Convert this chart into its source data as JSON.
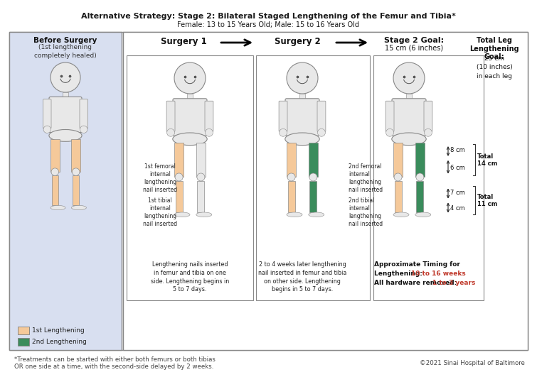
{
  "title_line1": "Alternative Strategy: Stage 2: Bilateral Staged Lengthening of the Femur and Tibia*",
  "title_line2": "Female: 13 to 15 Years Old; Male: 15 to 16 Years Old",
  "bg_color": "#ffffff",
  "panel_bg_left": "#d8dff0",
  "before_surgery_title": "Before Surgery",
  "before_surgery_sub": "(1st lengthening\ncompletely healed)",
  "surgery1_label": "Surgery 1",
  "surgery2_label": "Surgery 2",
  "stage2_goal_title": "Stage 2 Goal:",
  "stage2_goal_val": "15 cm (6 inches)",
  "total_leg_title": "Total Leg\nLengthening\nGoal:",
  "total_leg_val": "25 cm\n(10 inches)\nin each leg",
  "surg1_femoral_label": "1st femoral\ninternal\nlengthening\nnail inserted",
  "surg1_tibial_label": "1st tibial\ninternal\nlengthening\nnail inserted",
  "surg2_femoral_label": "2nd femoral\ninternal\nlengthening\nnail inserted",
  "surg2_tibial_label": "2nd tibial\ninternal\nlengthening\nnail inserted",
  "surg1_caption": "Lengthening nails inserted\nin femur and tibia on one\nside. Lengthening begins in\n5 to 7 days.",
  "surg2_caption": "2 to 4 weeks later lengthening\nnail inserted in femur and tibia\non other side. Lengthening\nbegins in 5 to 7 days.",
  "timing_title": "Approximate Timing for",
  "timing_line1_prefix": "Lengthening: ",
  "timing_line1_val": "10 to 16 weeks",
  "timing_line2_prefix": "All hardware removed: ",
  "timing_line2_val": "1 to 3 years",
  "femur_8cm": "↑4 8 cm",
  "femur_6cm": "6 cm",
  "femur_total": "Total\n14 cm",
  "tibia_7cm": "↑7 cm",
  "tibia_4cm": "4 cm",
  "tibia_total": "Total\n11 cm",
  "legend_1st": "1st Lengthening",
  "legend_2nd": "2nd Lengthening",
  "color_1st": "#f5c99a",
  "color_2nd": "#3a8c5c",
  "timing_color": "#c0392b",
  "footnote_line1": "*Treatments can be started with either both femurs or both tibias",
  "footnote_line2": "OR one side at a time, with the second-side delayed by 2 weeks.",
  "copyright": "©2021 Sinai Hospital of Baltimore",
  "watermark": "Sinai Hospital of Baltimore"
}
